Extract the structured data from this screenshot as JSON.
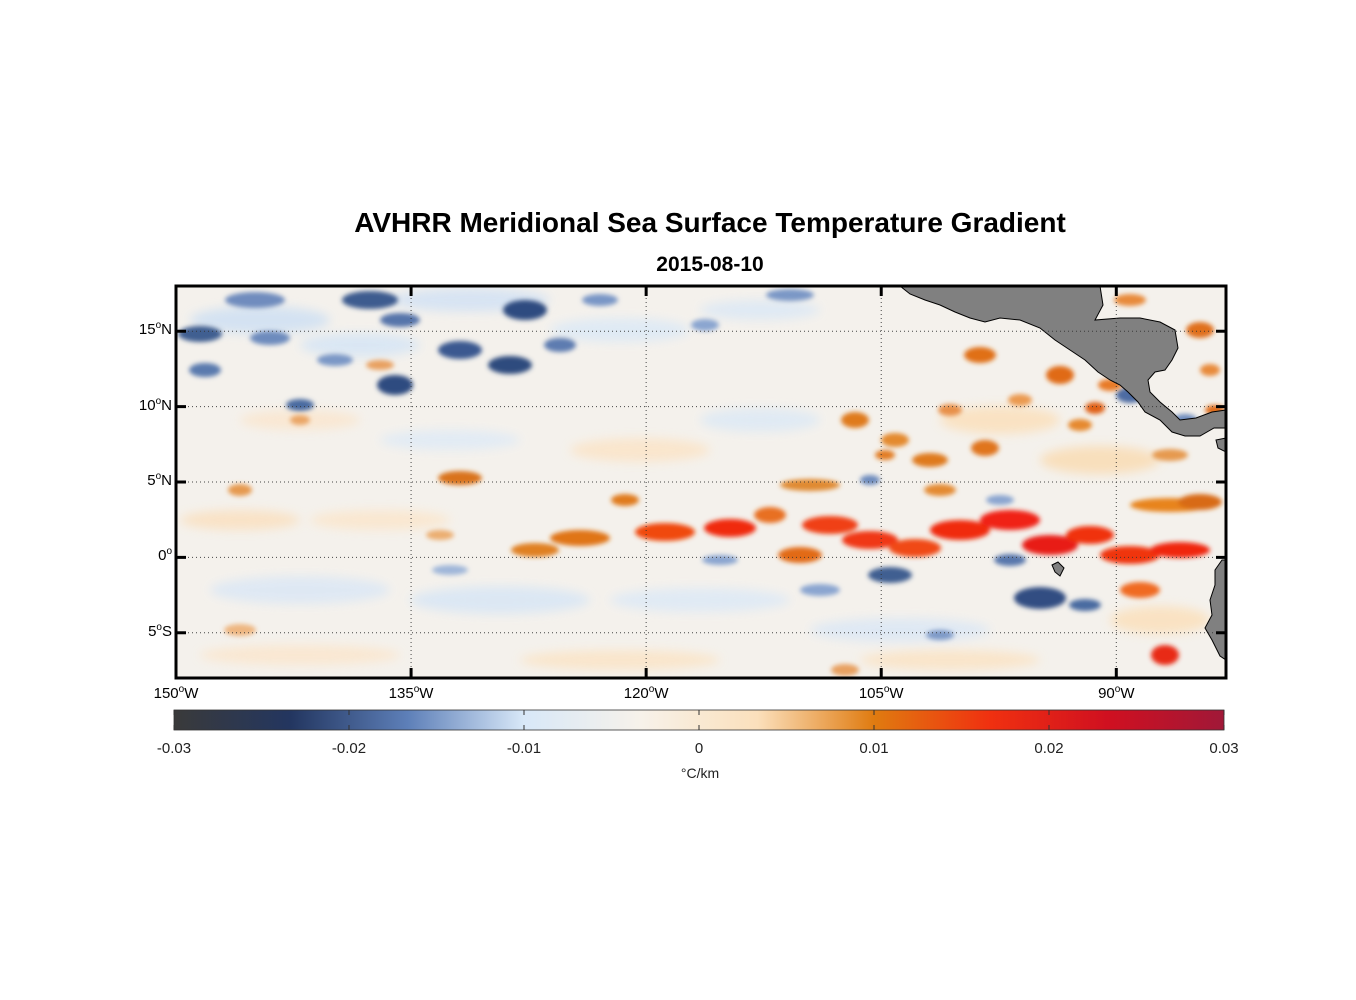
{
  "title": "AVHRR Meridional Sea Surface Temperature Gradient",
  "subtitle": "2015-08-10",
  "map": {
    "lon_range": [
      -150,
      -83
    ],
    "lat_range": [
      -8,
      18
    ],
    "grid": true,
    "land_color": "#808080",
    "lat_ticks": [
      {
        "value": 15,
        "deg": "15",
        "hemi": "N"
      },
      {
        "value": 10,
        "deg": "10",
        "hemi": "N"
      },
      {
        "value": 5,
        "deg": "5",
        "hemi": "N"
      },
      {
        "value": 0,
        "deg": "0",
        "hemi": ""
      },
      {
        "value": -5,
        "deg": "5",
        "hemi": "S"
      }
    ],
    "lon_ticks": [
      {
        "value": -150,
        "deg": "150",
        "hemi": "W"
      },
      {
        "value": -135,
        "deg": "135",
        "hemi": "W"
      },
      {
        "value": -120,
        "deg": "120",
        "hemi": "W"
      },
      {
        "value": -105,
        "deg": "105",
        "hemi": "W"
      },
      {
        "value": -90,
        "deg": "90",
        "hemi": "W"
      }
    ]
  },
  "colorbar": {
    "range": [
      -0.03,
      0.03
    ],
    "ticks": [
      "-0.03",
      "-0.02",
      "-0.01",
      "0",
      "0.01",
      "0.02",
      "0.03"
    ],
    "unit": "°C/km",
    "colors": [
      "#3a3a3a",
      "#233660",
      "#5d7fb8",
      "#d8e8f8",
      "#f7f2ea",
      "#fbe0bc",
      "#e07b10",
      "#f03010",
      "#d01020",
      "#a01838"
    ]
  }
}
